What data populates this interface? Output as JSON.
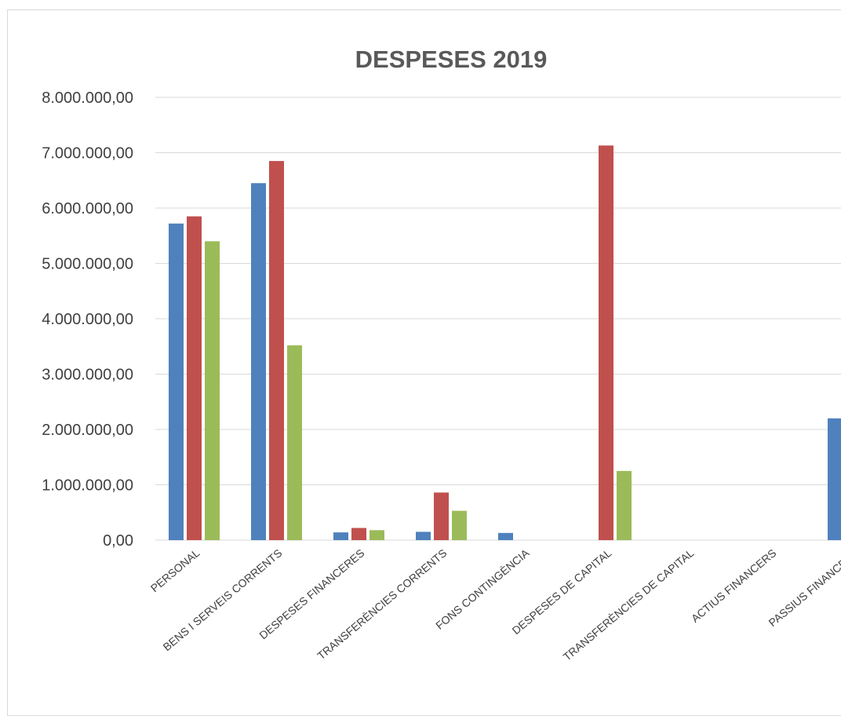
{
  "chart_data": {
    "type": "bar",
    "title": "DESPESES 2019",
    "xlabel": "",
    "ylabel": "",
    "ylim": [
      0,
      8000000
    ],
    "y_ticks": [
      "0,00",
      "1.000.000,00",
      "2.000.000,00",
      "3.000.000,00",
      "4.000.000,00",
      "5.000.000,00",
      "6.000.000,00",
      "7.000.000,00",
      "8.000.000,00"
    ],
    "grid": true,
    "categories": [
      "PERSONAL",
      "BENS I SERVEIS CORRENTS",
      "DESPESES FINANCERES",
      "TRANSFERÈNCIES CORRENTS",
      "FONS CONTINGÈNCIA",
      "DESPESES DE CAPITAL",
      "TRANSFERÈNCIES DE CAPITAL",
      "ACTIUS FINANCERS",
      "PASSIUS FINANCERS"
    ],
    "series": [
      {
        "color": "#4f81bd",
        "values": [
          5720000,
          6450000,
          140000,
          150000,
          130000,
          0,
          0,
          0,
          2200000
        ]
      },
      {
        "color": "#c0504d",
        "values": [
          5850000,
          6850000,
          220000,
          860000,
          0,
          7130000,
          0,
          0,
          0
        ]
      },
      {
        "color": "#9bbb59",
        "values": [
          5400000,
          3520000,
          180000,
          530000,
          0,
          1250000,
          0,
          0,
          0
        ]
      }
    ]
  }
}
